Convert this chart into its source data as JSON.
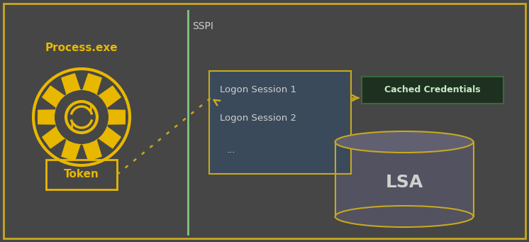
{
  "bg_color": "#464646",
  "border_color": "#c8a820",
  "gold": "#e8b800",
  "light_green": "#90c090",
  "dark_green_box": "#1e3020",
  "dark_green_border": "#3a6a3a",
  "logon_box_color": "#3a4a5a",
  "logon_box_border": "#c8a820",
  "sspi_line_color": "#80c880",
  "arrow_color": "#c8a820",
  "lsa_body_color": "#525260",
  "lsa_top_color": "#606070",
  "lsa_border_color": "#c8a820",
  "text_white": "#d0d0d0",
  "text_gold": "#e8b800",
  "text_green_bold": "#c8e8c8",
  "process_label": "Process.exe",
  "token_label": "Token",
  "sspi_label": "SSPI",
  "logon1_label": "Logon Session 1",
  "logon2_label": "Logon Session 2",
  "dots_label": "...",
  "lsa_label": "LSA",
  "cached_label": "Cached Credentials"
}
